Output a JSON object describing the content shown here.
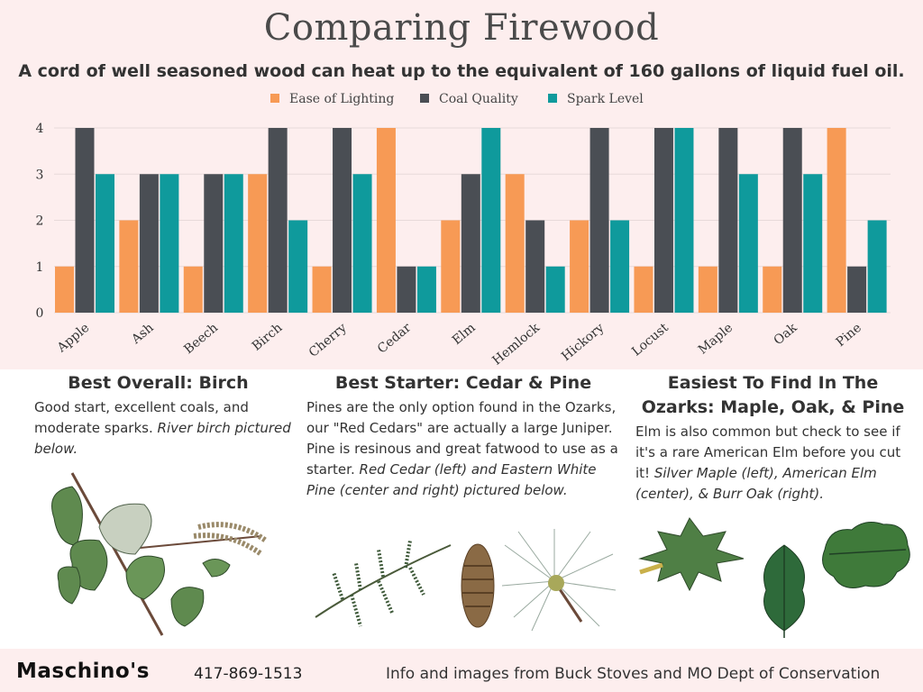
{
  "title": "Comparing Firewood",
  "subtitle": "A cord of well seasoned wood can heat up to the equivalent of 160 gallons of liquid fuel oil.",
  "colors": {
    "ease": "#f79a55",
    "coal": "#4a4e54",
    "spark": "#0f9a9c",
    "grid": "#e8dada"
  },
  "chart_data": {
    "type": "bar",
    "categories": [
      "Apple",
      "Ash",
      "Beech",
      "Birch",
      "Cherry",
      "Cedar",
      "Elm",
      "Hemlock",
      "Hickory",
      "Locust",
      "Maple",
      "Oak",
      "Pine"
    ],
    "series": [
      {
        "name": "Ease of Lighting",
        "values": [
          1,
          2,
          1,
          3,
          1,
          4,
          2,
          3,
          2,
          1,
          1,
          1,
          4
        ]
      },
      {
        "name": "Coal Quality",
        "values": [
          4,
          3,
          3,
          4,
          4,
          1,
          3,
          2,
          4,
          4,
          4,
          4,
          1
        ]
      },
      {
        "name": "Spark Level",
        "values": [
          3,
          3,
          3,
          2,
          3,
          1,
          4,
          1,
          2,
          4,
          3,
          3,
          2
        ]
      }
    ],
    "yticks": [
      "0",
      "1",
      "2",
      "3",
      "4"
    ],
    "ylim": [
      0,
      4
    ],
    "grid": true,
    "legend_position": "top-center"
  },
  "sections": {
    "birch": {
      "heading": "Best Overall: Birch",
      "body": "Good start, excellent coals, and moderate sparks.",
      "caption": "River birch pictured below."
    },
    "starter": {
      "heading": "Best Starter: Cedar & Pine",
      "body": " Pines are the only option found in the Ozarks, our \"Red Cedars\" are actually a large Juniper. Pine is resinous and great fatwood to use as a starter.",
      "caption": "Red Cedar (left) and Eastern White Pine (center and right) pictured below."
    },
    "ozarks": {
      "heading": "Easiest To Find In The Ozarks: Maple, Oak, & Pine",
      "body": "Elm is also common but check to see if it's a rare American Elm before you cut it!",
      "caption": "Silver Maple (left), American Elm (center), & Burr Oak (right)."
    }
  },
  "footer": {
    "brand": "Maschino's",
    "phone": "417-869-1513",
    "credit": "Info and images from Buck Stoves and MO Dept of Conservation"
  },
  "illustrations": [
    "river-birch-branch",
    "red-cedar-sprig",
    "white-pine-cone",
    "white-pine-needles",
    "silver-maple-leaf",
    "american-elm-leaf",
    "burr-oak-leaf"
  ]
}
